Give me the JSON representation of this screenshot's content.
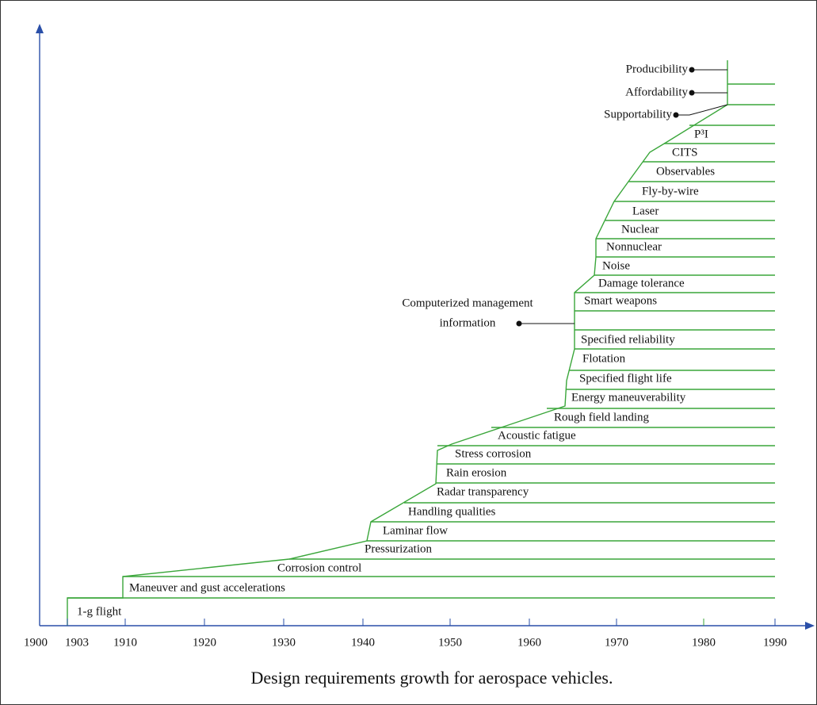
{
  "axis": {
    "ticks": [
      "1900",
      "1903",
      "1910",
      "1920",
      "1930",
      "1940",
      "1950",
      "1960",
      "1970",
      "1980",
      "1990"
    ]
  },
  "requirements": [
    "1-g flight",
    "Maneuver and gust accelerations",
    "Corrosion control",
    "Pressurization",
    "Laminar flow",
    "Handling qualities",
    "Radar transparency",
    "Rain erosion",
    "Stress corrosion",
    "Acoustic fatigue",
    "Rough field landing",
    "Energy maneuverability",
    "Specified flight life",
    "Flotation",
    "Specified reliability",
    "Smart weapons",
    "Damage tolerance",
    "Noise",
    "Nonnuclear",
    "Nuclear",
    "Laser",
    "Fly-by-wire",
    "Observables",
    "CITS",
    "P³I"
  ],
  "callouts": {
    "management": [
      "Computerized management",
      "information"
    ],
    "top": [
      "Producibility",
      "Affordability",
      "Supportability"
    ]
  },
  "caption": "Design requirements growth for aerospace vehicles."
}
